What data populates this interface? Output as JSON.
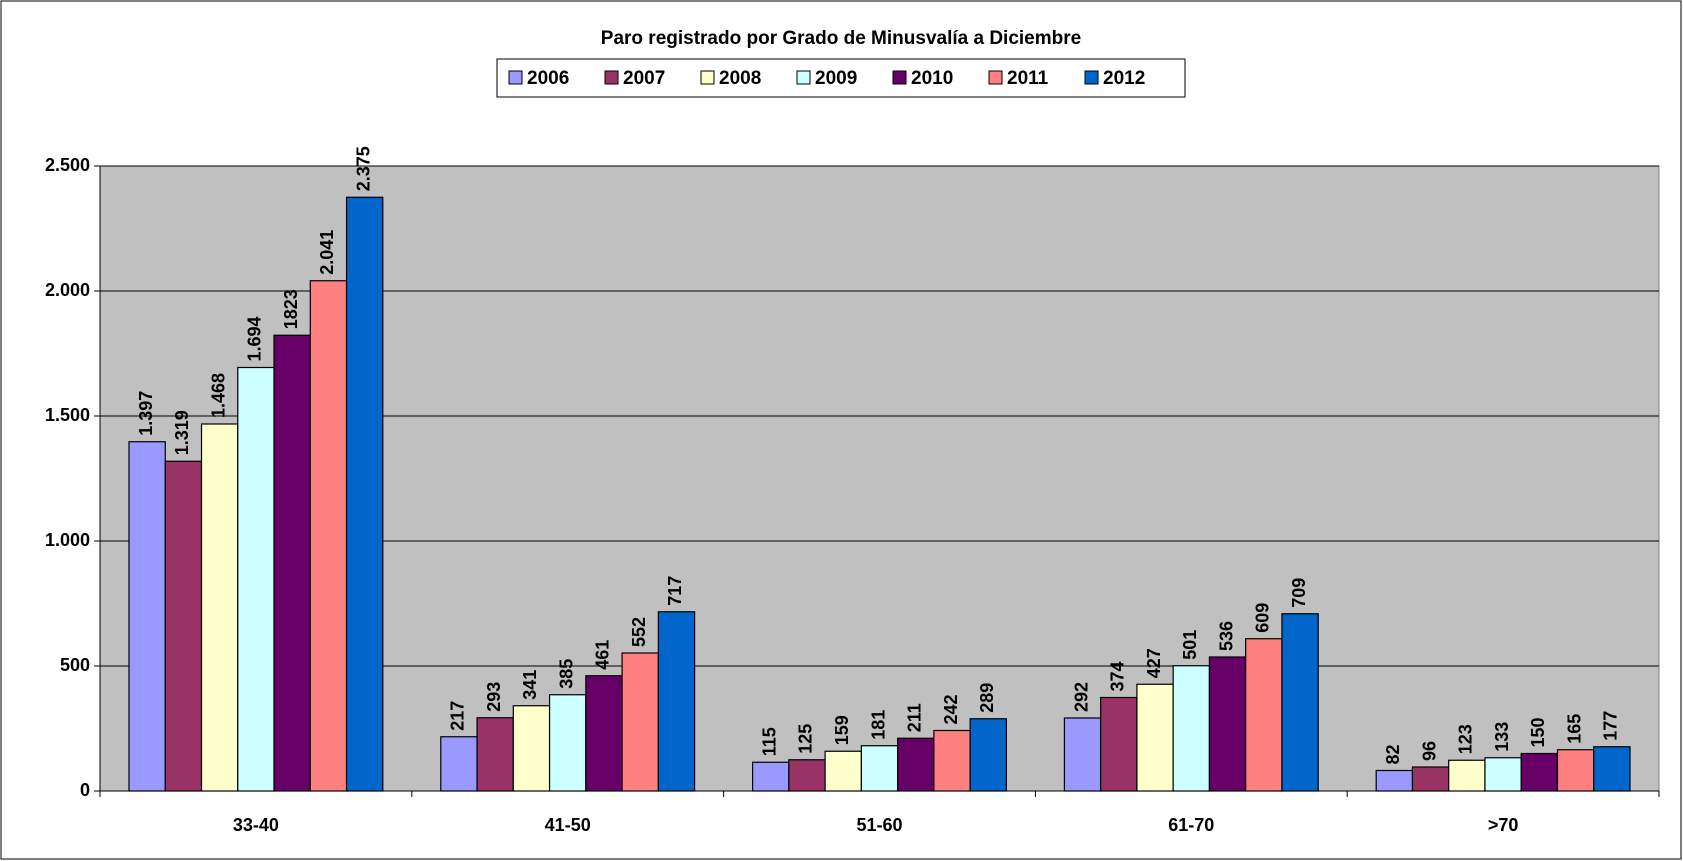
{
  "chart_data": {
    "type": "bar",
    "title": "Paro registrado por Grado de Minusvalía a Diciembre",
    "categories": [
      "33-40",
      "41-50",
      "51-60",
      "61-70",
      ">70"
    ],
    "series": [
      {
        "name": "2006",
        "color": "#9999ff",
        "values": [
          1397,
          217,
          115,
          292,
          82
        ],
        "value_labels": [
          "1.397",
          "217",
          "115",
          "292",
          "82"
        ]
      },
      {
        "name": "2007",
        "color": "#993366",
        "values": [
          1319,
          293,
          125,
          374,
          96
        ],
        "value_labels": [
          "1.319",
          "293",
          "125",
          "374",
          "96"
        ]
      },
      {
        "name": "2008",
        "color": "#ffffcc",
        "values": [
          1468,
          341,
          159,
          427,
          123
        ],
        "value_labels": [
          "1.468",
          "341",
          "159",
          "427",
          "123"
        ]
      },
      {
        "name": "2009",
        "color": "#ccffff",
        "values": [
          1694,
          385,
          181,
          501,
          133
        ],
        "value_labels": [
          "1.694",
          "385",
          "181",
          "501",
          "133"
        ]
      },
      {
        "name": "2010",
        "color": "#660066",
        "values": [
          1823,
          461,
          211,
          536,
          150
        ]
      },
      {
        "name": "2011",
        "color": "#ff8080",
        "values": [
          2041,
          552,
          242,
          609,
          165
        ],
        "value_labels": [
          "2.041",
          "552",
          "242",
          "609",
          "165"
        ]
      },
      {
        "name": "2012",
        "color": "#0066cc",
        "values": [
          2375,
          717,
          289,
          709,
          177
        ],
        "value_labels": [
          "2.375",
          "717",
          "289",
          "709",
          "177"
        ]
      }
    ],
    "ylim": [
      0,
      2500
    ],
    "yticks": [
      0,
      500,
      {
        "value": 1000,
        "label": "1.000"
      },
      {
        "value": 1500,
        "label": "1.500"
      },
      {
        "value": 2000,
        "label": "2.000"
      },
      {
        "value": 2500,
        "label": "2.500"
      }
    ],
    "grid": true,
    "legend": "top"
  }
}
